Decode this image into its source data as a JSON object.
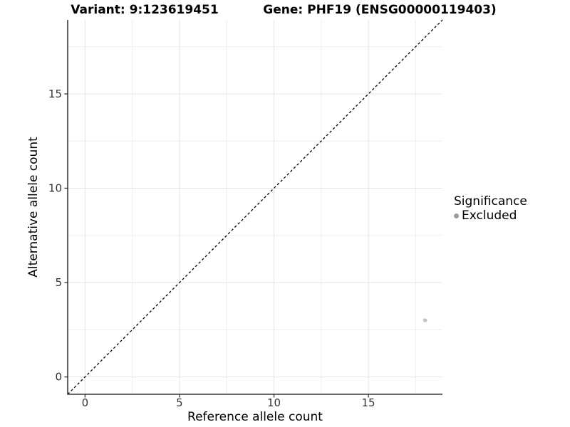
{
  "chart_data": {
    "type": "scatter",
    "titles": [
      "Variant: 9:123619451",
      "Gene: PHF19 (ENSG00000119403)"
    ],
    "xlabel": "Reference allele count",
    "ylabel": "Alternative allele count",
    "xlim": [
      -0.92,
      18.92
    ],
    "ylim": [
      -0.92,
      18.92
    ],
    "xticks": [
      0,
      5,
      10,
      15
    ],
    "yticks": [
      0,
      5,
      10,
      15
    ],
    "minor_grid_step": 2.5,
    "grid": "major+minor",
    "identity_line": {
      "slope": 1,
      "intercept": 0,
      "style": "dashed",
      "color": "#000000"
    },
    "series": [
      {
        "name": "Excluded",
        "color": "#c3c3c3",
        "points": [
          {
            "x": 18,
            "y": 3
          }
        ]
      }
    ],
    "legend": {
      "title": "Significance",
      "position": "right",
      "items": [
        {
          "label": "Excluded",
          "color": "#9c9c9c"
        }
      ]
    }
  },
  "style": {
    "background": "#ffffff",
    "axis_line": "#3a3a3a",
    "tick_label_color": "#333333",
    "major_grid": "#e4e4e4",
    "minor_grid": "#efefef",
    "point_radius": 2.8
  }
}
